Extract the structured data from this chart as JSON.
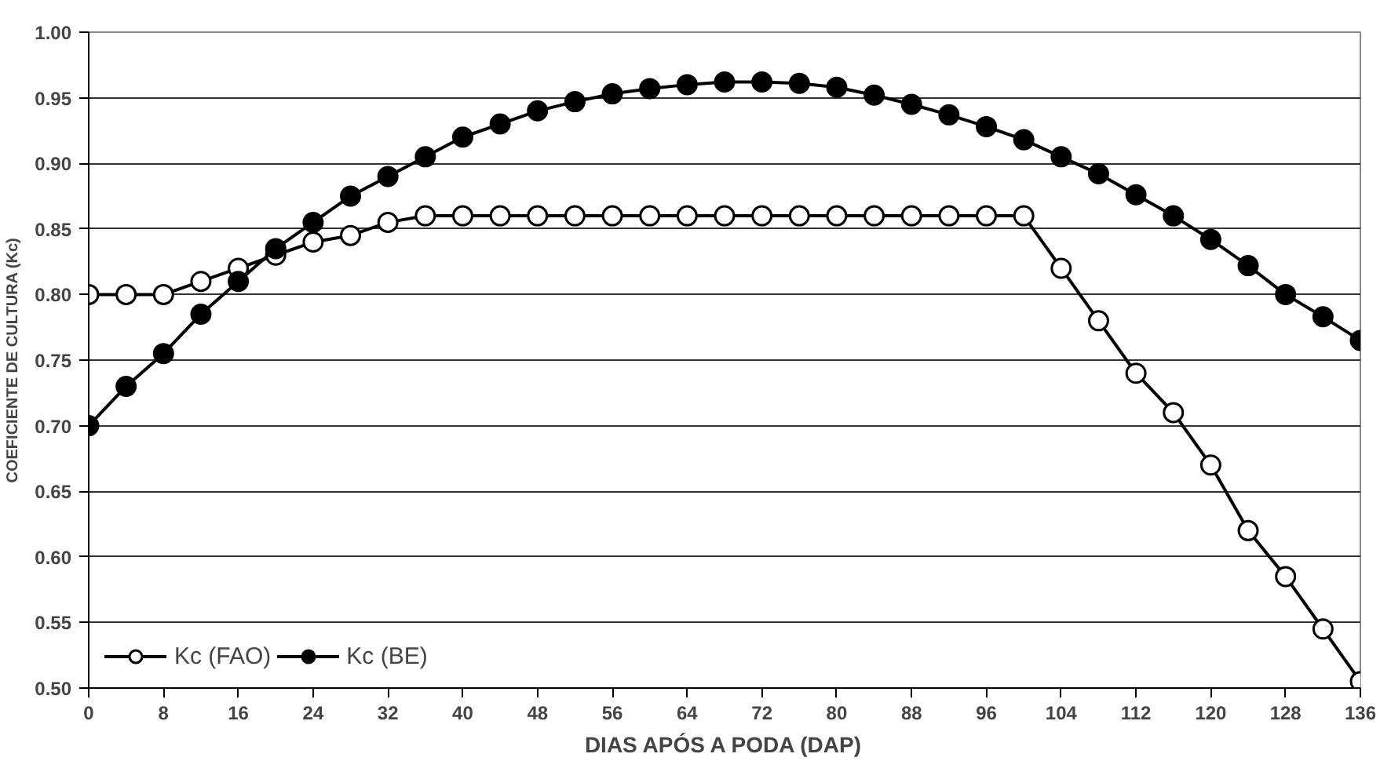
{
  "chart_data": {
    "type": "line",
    "xlabel": "DIAS APÓS A PODA (DAP)",
    "ylabel": "COEFICIENTE DE CULTURA (Kc)",
    "x": [
      0,
      4,
      8,
      12,
      16,
      20,
      24,
      28,
      32,
      36,
      40,
      44,
      48,
      52,
      56,
      60,
      64,
      68,
      72,
      76,
      80,
      84,
      88,
      92,
      96,
      100,
      104,
      108,
      112,
      116,
      120,
      124,
      128,
      132,
      136
    ],
    "series": [
      {
        "name": "Kc (FAO)",
        "color": "#ffffff",
        "values": [
          0.8,
          0.8,
          0.8,
          0.81,
          0.82,
          0.83,
          0.84,
          0.845,
          0.855,
          0.86,
          0.86,
          0.86,
          0.86,
          0.86,
          0.86,
          0.86,
          0.86,
          0.86,
          0.86,
          0.86,
          0.86,
          0.86,
          0.86,
          0.86,
          0.86,
          0.86,
          0.82,
          0.78,
          0.74,
          0.71,
          0.67,
          0.62,
          0.585,
          0.545,
          0.505
        ]
      },
      {
        "name": "Kc (BE)",
        "color": "#000000",
        "values": [
          0.7,
          0.73,
          0.755,
          0.785,
          0.81,
          0.835,
          0.855,
          0.875,
          0.89,
          0.905,
          0.92,
          0.93,
          0.94,
          0.947,
          0.953,
          0.957,
          0.96,
          0.962,
          0.962,
          0.961,
          0.958,
          0.952,
          0.945,
          0.937,
          0.928,
          0.918,
          0.905,
          0.892,
          0.876,
          0.86,
          0.842,
          0.822,
          0.8,
          0.783,
          0.765
        ]
      }
    ],
    "xlim": [
      0,
      136
    ],
    "xticks": [
      0,
      8,
      16,
      24,
      32,
      40,
      48,
      56,
      64,
      72,
      80,
      88,
      96,
      104,
      112,
      120,
      128,
      136
    ],
    "ylim": [
      0.5,
      1.0
    ],
    "yticks": [
      {
        "value": 0.5,
        "label": "0.50"
      },
      {
        "value": 0.55,
        "label": "0.55"
      },
      {
        "value": 0.6,
        "label": "0.60"
      },
      {
        "value": 0.65,
        "label": "0.65"
      },
      {
        "value": 0.7,
        "label": "0.70"
      },
      {
        "value": 0.75,
        "label": "0.75"
      },
      {
        "value": 0.8,
        "label": "0.80"
      },
      {
        "value": 0.85,
        "label": "0.85"
      },
      {
        "value": 0.9,
        "label": "0.90"
      },
      {
        "value": 0.95,
        "label": "0.95"
      },
      {
        "value": 1.0,
        "label": "1.00"
      }
    ],
    "grid": "y",
    "legend": "bottom left",
    "marker": "circle"
  }
}
